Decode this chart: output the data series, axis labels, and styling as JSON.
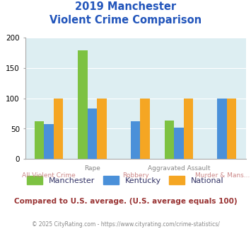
{
  "title_line1": "2019 Manchester",
  "title_line2": "Violent Crime Comparison",
  "categories": [
    "All Violent Crime",
    "Rape",
    "Robbery",
    "Aggravated Assault",
    "Murder & Mans..."
  ],
  "manchester": [
    62,
    179,
    0,
    63,
    0
  ],
  "kentucky": [
    58,
    83,
    62,
    52,
    100
  ],
  "national": [
    100,
    100,
    100,
    100,
    100
  ],
  "manchester_color": "#7dc242",
  "kentucky_color": "#4a90d9",
  "national_color": "#f5a623",
  "bg_color": "#ddeef2",
  "ylim": [
    0,
    200
  ],
  "yticks": [
    0,
    50,
    100,
    150,
    200
  ],
  "subtitle_text": "Compared to U.S. average. (U.S. average equals 100)",
  "footer_text": "© 2025 CityRating.com - https://www.cityrating.com/crime-statistics/",
  "title_color": "#2255bb",
  "subtitle_color": "#993333",
  "footer_color": "#888888",
  "xlabel_top_color": "#888888",
  "xlabel_bot_color": "#cc8888",
  "legend_label_color": "#333366"
}
